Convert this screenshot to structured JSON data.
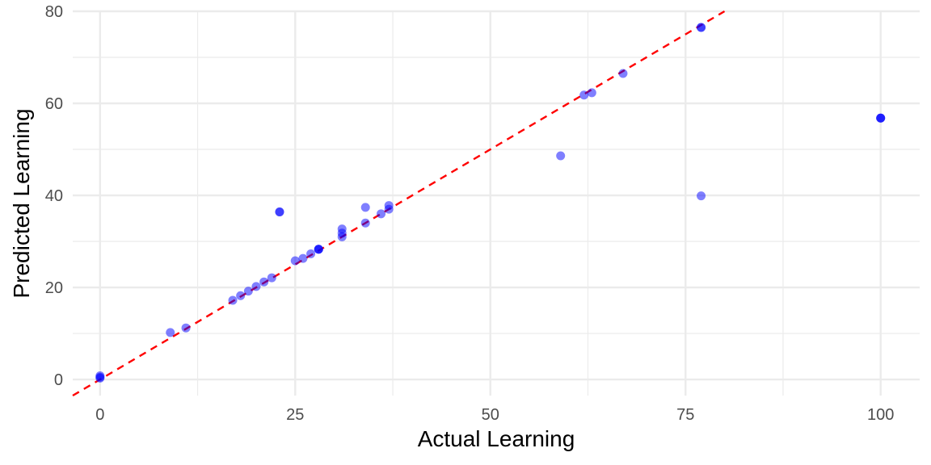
{
  "chart_data": {
    "type": "scatter",
    "title": "",
    "xlabel": "Actual Learning",
    "ylabel": "Predicted Learning",
    "xlim": [
      -3.5,
      105
    ],
    "ylim": [
      -3.5,
      80
    ],
    "x_ticks": [
      0,
      25,
      50,
      75,
      100
    ],
    "y_ticks": [
      0,
      20,
      40,
      60,
      80
    ],
    "x_minor": [
      12.5,
      37.5,
      62.5,
      87.5
    ],
    "y_minor": [
      10,
      30,
      50,
      70
    ],
    "grid": true,
    "colors": {
      "points": "#0000ff",
      "reference_line": "#ff0000",
      "grid": "#ebebeb"
    },
    "reference_line": {
      "slope": 1,
      "intercept": 0,
      "style": "dashed"
    },
    "points": [
      {
        "x": 0,
        "y": 0.5
      },
      {
        "x": 0,
        "y": 0.8
      },
      {
        "x": 0,
        "y": 0.3
      },
      {
        "x": 9,
        "y": 10.2
      },
      {
        "x": 11,
        "y": 11.2
      },
      {
        "x": 17,
        "y": 17.2
      },
      {
        "x": 18,
        "y": 18.2
      },
      {
        "x": 19,
        "y": 19.2
      },
      {
        "x": 20,
        "y": 20.2
      },
      {
        "x": 21,
        "y": 21.2
      },
      {
        "x": 22,
        "y": 22.1
      },
      {
        "x": 23,
        "y": 36.4
      },
      {
        "x": 23,
        "y": 36.4
      },
      {
        "x": 25,
        "y": 25.8
      },
      {
        "x": 26,
        "y": 26.3
      },
      {
        "x": 27,
        "y": 27.3
      },
      {
        "x": 28,
        "y": 28.3
      },
      {
        "x": 28,
        "y": 28.3
      },
      {
        "x": 28,
        "y": 28.3
      },
      {
        "x": 31,
        "y": 31.0
      },
      {
        "x": 31,
        "y": 31.8
      },
      {
        "x": 31,
        "y": 32.7
      },
      {
        "x": 34,
        "y": 34.0
      },
      {
        "x": 34,
        "y": 37.4
      },
      {
        "x": 36,
        "y": 36.0
      },
      {
        "x": 37,
        "y": 37.0
      },
      {
        "x": 37,
        "y": 37.8
      },
      {
        "x": 59,
        "y": 48.6
      },
      {
        "x": 62,
        "y": 61.8
      },
      {
        "x": 63,
        "y": 62.3
      },
      {
        "x": 67,
        "y": 66.5
      },
      {
        "x": 77,
        "y": 76.5
      },
      {
        "x": 77,
        "y": 76.5
      },
      {
        "x": 77,
        "y": 39.9
      },
      {
        "x": 100,
        "y": 56.8
      },
      {
        "x": 100,
        "y": 56.8
      },
      {
        "x": 100,
        "y": 56.8
      }
    ]
  }
}
